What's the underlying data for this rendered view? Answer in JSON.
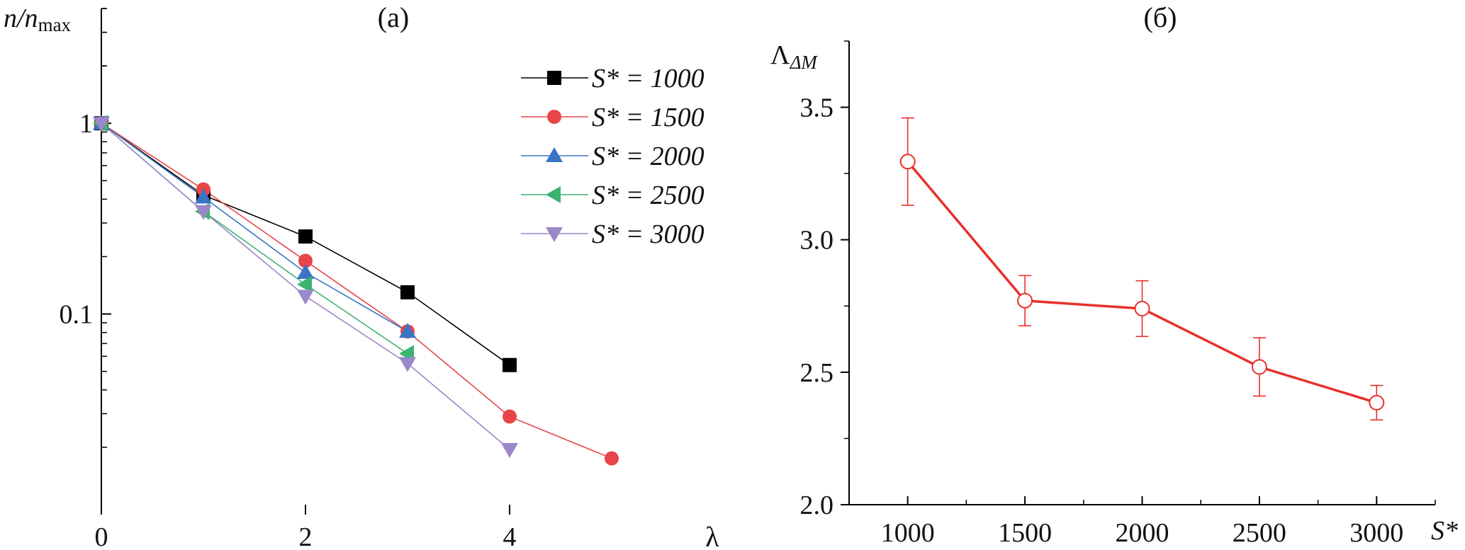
{
  "chart_data": [
    {
      "panel": "(a)",
      "type": "line",
      "ylabel": "n/n",
      "ylabel_sub": "max",
      "xlabel": "λ",
      "xlim": [
        0,
        6
      ],
      "ylim": [
        0.01,
        4
      ],
      "yscale": "log",
      "grid": false,
      "legend_position": "top-right",
      "x_ticks": [
        "0",
        "2",
        "4"
      ],
      "y_ticks": [
        "0.1",
        "1"
      ],
      "series": [
        {
          "name": "S* = 1000",
          "color": "#000000",
          "marker": "square",
          "x": [
            0,
            1,
            2,
            3,
            4
          ],
          "y": [
            1.0,
            0.42,
            0.255,
            0.13,
            0.054
          ]
        },
        {
          "name": "S* = 1500",
          "color": "#e8454a",
          "marker": "circle",
          "x": [
            0,
            1,
            2,
            3,
            4,
            5
          ],
          "y": [
            1.0,
            0.45,
            0.19,
            0.081,
            0.029,
            0.0175
          ]
        },
        {
          "name": "S* = 2000",
          "color": "#3a74c4",
          "marker": "triangle-up",
          "x": [
            0,
            1,
            2,
            3
          ],
          "y": [
            1.0,
            0.41,
            0.165,
            0.081
          ]
        },
        {
          "name": "S* = 2500",
          "color": "#3cb371",
          "marker": "triangle-left",
          "x": [
            0,
            1,
            2,
            3
          ],
          "y": [
            1.0,
            0.345,
            0.143,
            0.062
          ]
        },
        {
          "name": "S* = 3000",
          "color": "#9b88c9",
          "marker": "triangle-down",
          "x": [
            0,
            1,
            2,
            3,
            4
          ],
          "y": [
            1.0,
            0.345,
            0.124,
            0.055,
            0.0195
          ]
        }
      ]
    },
    {
      "panel": "(б)",
      "type": "line",
      "ylabel": "Λ",
      "ylabel_sub": "ΔM",
      "xlabel": "S*",
      "xlim": [
        750,
        3250
      ],
      "ylim": [
        2.0,
        3.75
      ],
      "grid": false,
      "x_ticks": [
        "1000",
        "1500",
        "2000",
        "2500",
        "3000"
      ],
      "y_ticks": [
        "2.0",
        "2.5",
        "3.0",
        "3.5"
      ],
      "series": [
        {
          "color": "#e8302c",
          "marker": "open-circle",
          "x": [
            1000,
            1500,
            2000,
            2500,
            3000
          ],
          "y": [
            3.295,
            2.77,
            2.74,
            2.52,
            2.385
          ],
          "err": [
            0.165,
            0.095,
            0.105,
            0.11,
            0.065
          ]
        }
      ]
    }
  ]
}
